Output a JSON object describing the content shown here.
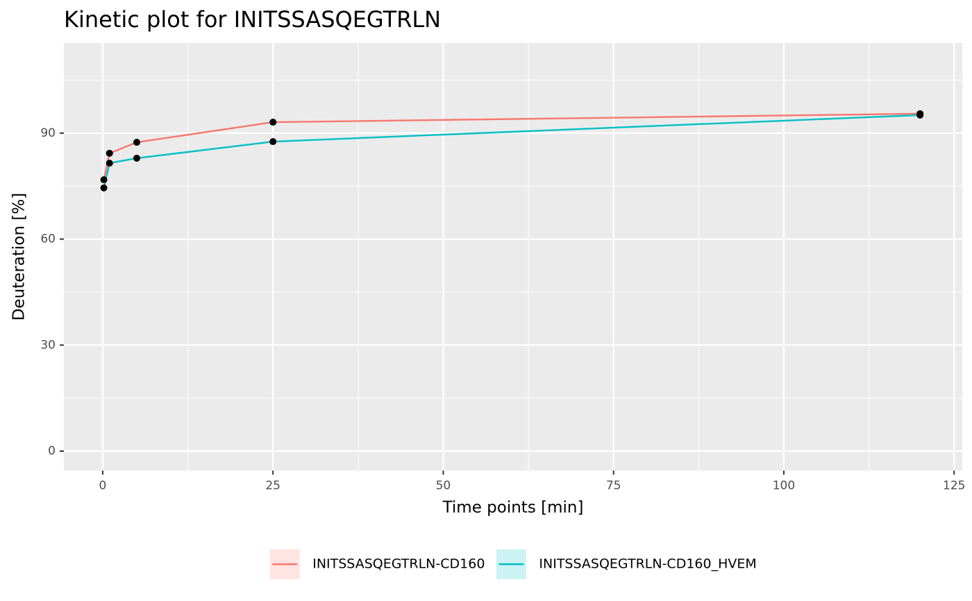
{
  "chart_data": {
    "type": "line",
    "title": "Kinetic plot for INITSSASQEGTRLN",
    "x_label": "Time points [min]",
    "y_label": "Deuteration [%]",
    "x": [
      0.167,
      1,
      5,
      25,
      120
    ],
    "series": [
      {
        "name": "INITSSASQEGTRLN-CD160",
        "color": "#f8766d",
        "values": [
          76.8,
          84.3,
          87.4,
          93.1,
          95.5
        ]
      },
      {
        "name": "INITSSASQEGTRLN-CD160_HVEM",
        "color": "#00bfc4",
        "values": [
          74.5,
          81.5,
          82.9,
          87.6,
          95.1
        ]
      }
    ],
    "xlim": [
      -5.7,
      126.2
    ],
    "xticks": [
      0,
      25,
      50,
      75,
      100,
      125
    ],
    "ylim": [
      -5.5,
      115.5
    ],
    "yticks": [
      0,
      30,
      60,
      90
    ],
    "grid": true,
    "legend": "bottom"
  }
}
